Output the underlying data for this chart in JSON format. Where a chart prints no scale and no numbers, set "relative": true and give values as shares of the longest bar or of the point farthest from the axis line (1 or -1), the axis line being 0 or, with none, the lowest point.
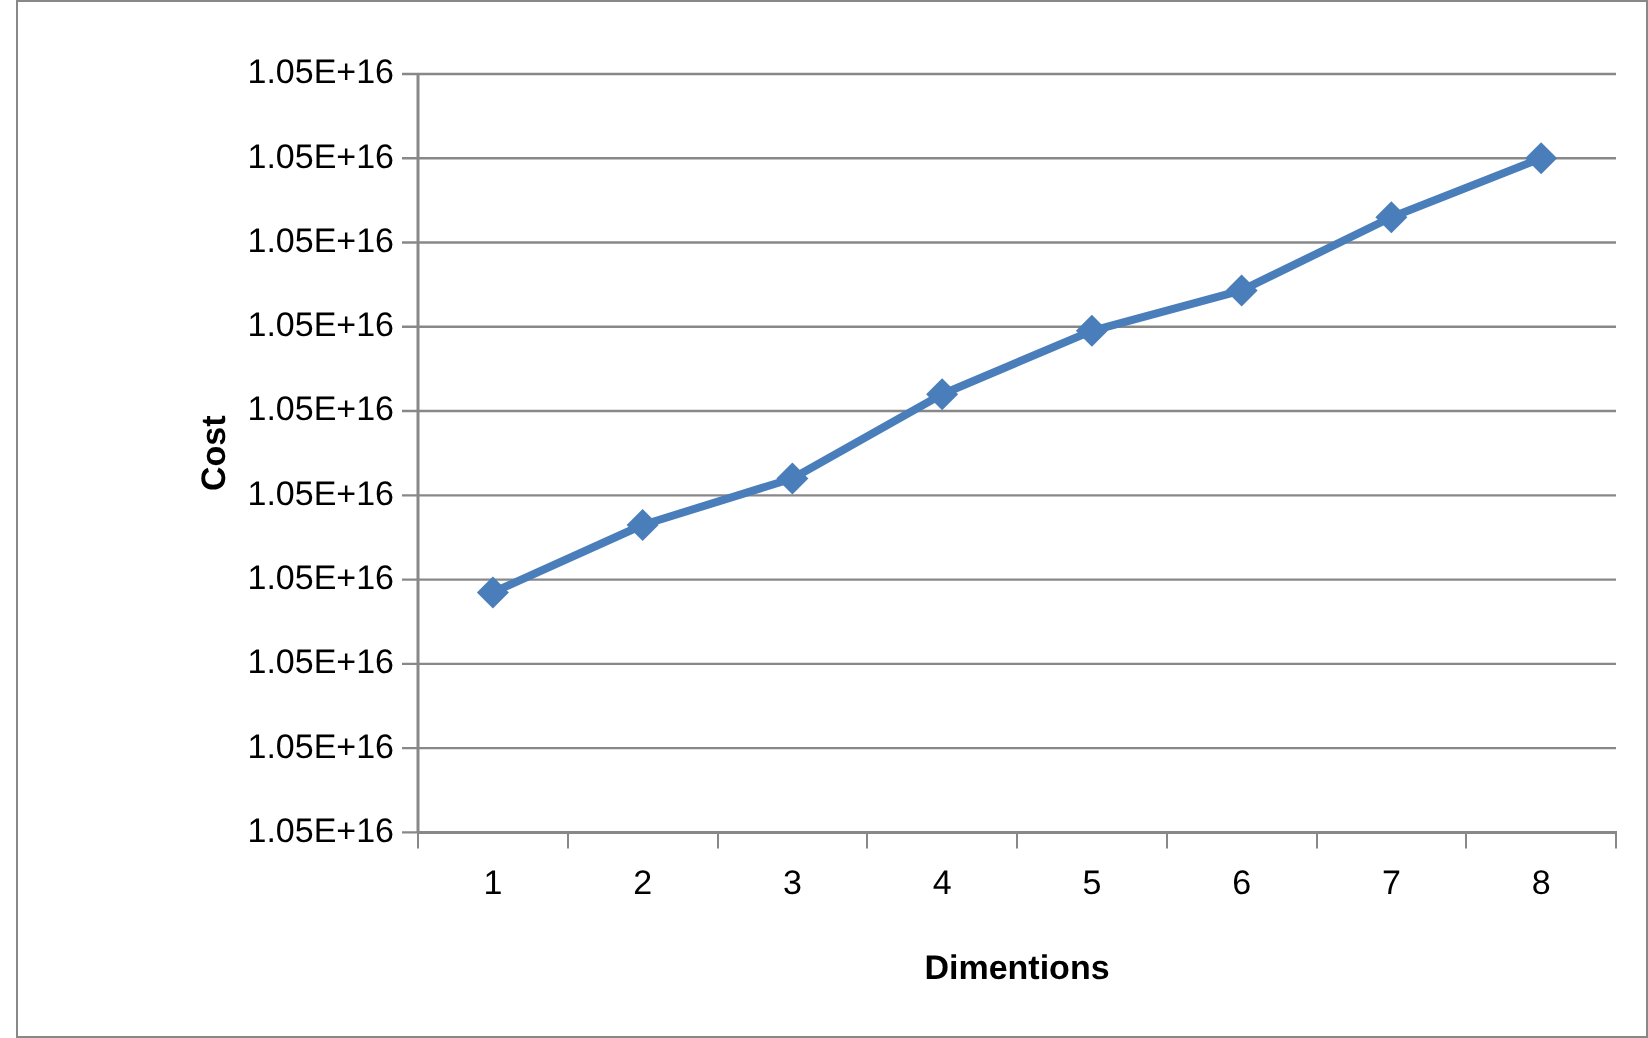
{
  "chart_data": {
    "type": "line",
    "xlabel": "Dimentions",
    "ylabel": "Cost",
    "relative": true,
    "categories": [
      "1",
      "2",
      "3",
      "4",
      "5",
      "6",
      "7",
      "8"
    ],
    "series": [
      {
        "color": "#4a7ebb",
        "values": [
          0.356,
          0.456,
          0.525,
          0.65,
          0.744,
          0.804,
          0.9125,
          1
        ]
      }
    ],
    "annotations": [
      "1.05E+16",
      "1.05E+16",
      "1.05E+16",
      "1.05E+16",
      "1.05E+16",
      "1.05E+16",
      "1.05E+16",
      "1.05E+16",
      "1.05E+16",
      "1.05E+16"
    ],
    "grid": "y",
    "legend": false,
    "marker": "diamond",
    "line_style": "solid"
  }
}
